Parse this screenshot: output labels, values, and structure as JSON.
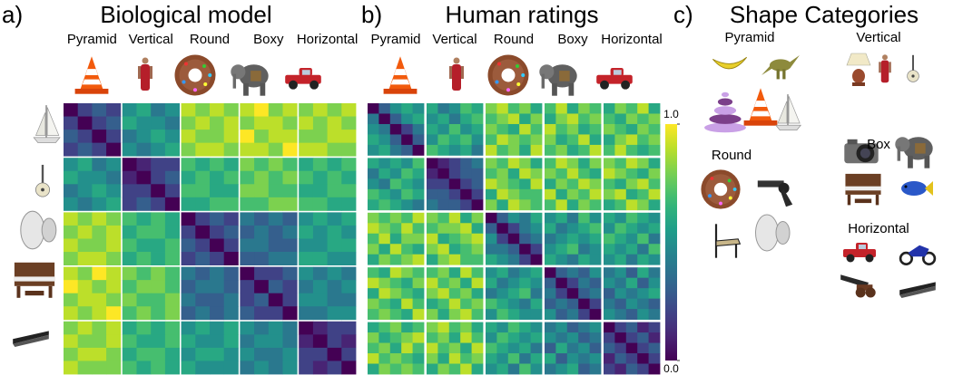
{
  "chart_data": [
    {
      "type": "heatmap",
      "label": "a)",
      "title": "Biological model",
      "categories": [
        "Pyramid",
        "Vertical",
        "Round",
        "Boxy",
        "Horizontal"
      ],
      "colormap": "viridis",
      "block_gaps": true,
      "values": [
        [
          0.0,
          0.2,
          0.3,
          0.2,
          0.5,
          0.6,
          0.4,
          0.5,
          0.9,
          0.8,
          0.9,
          0.8,
          0.9,
          1.0,
          0.8,
          0.9,
          0.8,
          0.9,
          0.8,
          0.9
        ],
        [
          0.2,
          0.0,
          0.2,
          0.3,
          0.6,
          0.5,
          0.5,
          0.4,
          0.8,
          0.9,
          0.8,
          0.9,
          0.8,
          0.9,
          0.9,
          0.8,
          0.9,
          0.8,
          0.9,
          0.8
        ],
        [
          0.3,
          0.2,
          0.0,
          0.2,
          0.4,
          0.5,
          0.6,
          0.5,
          0.9,
          0.8,
          0.8,
          0.9,
          1.0,
          0.8,
          0.9,
          0.9,
          0.8,
          0.8,
          0.9,
          0.9
        ],
        [
          0.2,
          0.3,
          0.2,
          0.0,
          0.5,
          0.4,
          0.5,
          0.6,
          0.8,
          0.9,
          0.9,
          0.8,
          0.9,
          0.9,
          0.8,
          1.0,
          0.9,
          0.9,
          0.8,
          0.8
        ],
        [
          0.5,
          0.6,
          0.4,
          0.5,
          0.0,
          0.1,
          0.2,
          0.2,
          0.7,
          0.6,
          0.7,
          0.6,
          0.8,
          0.7,
          0.8,
          0.7,
          0.6,
          0.7,
          0.6,
          0.7
        ],
        [
          0.6,
          0.5,
          0.5,
          0.4,
          0.1,
          0.0,
          0.2,
          0.3,
          0.6,
          0.7,
          0.6,
          0.7,
          0.7,
          0.8,
          0.7,
          0.8,
          0.7,
          0.6,
          0.7,
          0.6
        ],
        [
          0.4,
          0.5,
          0.6,
          0.5,
          0.2,
          0.2,
          0.0,
          0.2,
          0.7,
          0.7,
          0.6,
          0.6,
          0.8,
          0.8,
          0.7,
          0.7,
          0.6,
          0.6,
          0.7,
          0.7
        ],
        [
          0.5,
          0.4,
          0.5,
          0.6,
          0.2,
          0.3,
          0.2,
          0.0,
          0.6,
          0.6,
          0.7,
          0.7,
          0.7,
          0.7,
          0.8,
          0.8,
          0.7,
          0.7,
          0.6,
          0.6
        ],
        [
          0.9,
          0.8,
          0.9,
          0.8,
          0.7,
          0.6,
          0.7,
          0.6,
          0.0,
          0.2,
          0.3,
          0.2,
          0.4,
          0.3,
          0.4,
          0.3,
          0.5,
          0.6,
          0.5,
          0.6
        ],
        [
          0.8,
          0.9,
          0.8,
          0.9,
          0.6,
          0.7,
          0.7,
          0.6,
          0.2,
          0.0,
          0.2,
          0.3,
          0.3,
          0.4,
          0.3,
          0.4,
          0.6,
          0.5,
          0.6,
          0.5
        ],
        [
          0.9,
          0.8,
          0.8,
          0.9,
          0.7,
          0.6,
          0.6,
          0.7,
          0.3,
          0.2,
          0.0,
          0.2,
          0.4,
          0.4,
          0.3,
          0.3,
          0.5,
          0.5,
          0.6,
          0.6
        ],
        [
          0.8,
          0.9,
          0.9,
          0.8,
          0.6,
          0.7,
          0.6,
          0.7,
          0.2,
          0.3,
          0.2,
          0.0,
          0.3,
          0.3,
          0.4,
          0.4,
          0.6,
          0.6,
          0.5,
          0.5
        ],
        [
          0.9,
          0.8,
          1.0,
          0.9,
          0.8,
          0.7,
          0.8,
          0.7,
          0.4,
          0.3,
          0.4,
          0.3,
          0.0,
          0.2,
          0.2,
          0.3,
          0.5,
          0.4,
          0.5,
          0.4
        ],
        [
          1.0,
          0.9,
          0.8,
          0.9,
          0.7,
          0.8,
          0.8,
          0.7,
          0.3,
          0.4,
          0.4,
          0.3,
          0.2,
          0.0,
          0.3,
          0.2,
          0.4,
          0.5,
          0.4,
          0.5
        ],
        [
          0.8,
          0.9,
          0.9,
          0.8,
          0.8,
          0.7,
          0.7,
          0.8,
          0.4,
          0.3,
          0.3,
          0.4,
          0.2,
          0.3,
          0.0,
          0.2,
          0.5,
          0.5,
          0.4,
          0.4
        ],
        [
          0.9,
          0.8,
          0.9,
          1.0,
          0.7,
          0.8,
          0.7,
          0.8,
          0.3,
          0.4,
          0.3,
          0.4,
          0.3,
          0.2,
          0.2,
          0.0,
          0.4,
          0.4,
          0.5,
          0.5
        ],
        [
          0.8,
          0.9,
          0.8,
          0.9,
          0.6,
          0.7,
          0.6,
          0.7,
          0.5,
          0.6,
          0.5,
          0.6,
          0.5,
          0.4,
          0.5,
          0.4,
          0.0,
          0.1,
          0.2,
          0.2
        ],
        [
          0.9,
          0.8,
          0.8,
          0.9,
          0.7,
          0.6,
          0.6,
          0.7,
          0.6,
          0.5,
          0.5,
          0.6,
          0.4,
          0.5,
          0.5,
          0.4,
          0.1,
          0.0,
          0.2,
          0.1
        ],
        [
          0.8,
          0.9,
          0.9,
          0.8,
          0.6,
          0.7,
          0.7,
          0.6,
          0.5,
          0.6,
          0.6,
          0.5,
          0.5,
          0.4,
          0.4,
          0.5,
          0.2,
          0.2,
          0.0,
          0.2
        ],
        [
          0.9,
          0.8,
          0.8,
          0.8,
          0.7,
          0.6,
          0.7,
          0.6,
          0.6,
          0.5,
          0.5,
          0.5,
          0.4,
          0.5,
          0.4,
          0.5,
          0.2,
          0.1,
          0.2,
          0.0
        ]
      ]
    },
    {
      "type": "heatmap",
      "label": "b)",
      "title": "Human ratings",
      "categories": [
        "Pyramid",
        "Vertical",
        "Round",
        "Boxy",
        "Horizontal"
      ],
      "colormap": "viridis",
      "block_gaps": true,
      "zlim": [
        0,
        1
      ],
      "zticks": [
        {
          "value": 0,
          "label": "0.0"
        },
        {
          "value": 1,
          "label": "1.0"
        }
      ],
      "values": [
        [
          0.0,
          0.3,
          0.5,
          0.6,
          0.5,
          0.6,
          0.4,
          0.5,
          0.7,
          0.6,
          0.8,
          0.9,
          0.7,
          0.8,
          0.6,
          0.7,
          0.9,
          0.6,
          0.8,
          0.7,
          0.6,
          0.8,
          0.7,
          0.9,
          0.6
        ],
        [
          0.4,
          0.0,
          0.3,
          0.5,
          0.6,
          0.5,
          0.6,
          0.4,
          0.6,
          0.7,
          0.7,
          0.8,
          0.9,
          0.6,
          0.8,
          0.6,
          0.8,
          0.9,
          0.7,
          0.8,
          0.7,
          0.6,
          0.8,
          0.7,
          0.8
        ],
        [
          0.5,
          0.4,
          0.0,
          0.2,
          0.4,
          0.6,
          0.5,
          0.7,
          0.5,
          0.6,
          0.8,
          0.7,
          0.6,
          0.9,
          0.7,
          0.9,
          0.7,
          0.8,
          0.6,
          0.7,
          0.8,
          0.7,
          0.6,
          0.8,
          0.7
        ],
        [
          0.6,
          0.5,
          0.3,
          0.0,
          0.3,
          0.5,
          0.7,
          0.6,
          0.7,
          0.5,
          0.7,
          0.9,
          0.8,
          0.7,
          0.8,
          0.8,
          0.6,
          0.7,
          0.9,
          0.6,
          0.6,
          0.8,
          0.9,
          0.7,
          0.8
        ],
        [
          0.5,
          0.6,
          0.4,
          0.3,
          0.0,
          0.7,
          0.6,
          0.5,
          0.6,
          0.4,
          0.9,
          0.7,
          0.8,
          0.6,
          0.9,
          0.7,
          0.8,
          0.6,
          0.7,
          0.9,
          0.7,
          0.9,
          0.7,
          0.6,
          0.7
        ],
        [
          0.6,
          0.5,
          0.6,
          0.5,
          0.7,
          0.0,
          0.1,
          0.2,
          0.3,
          0.4,
          0.8,
          0.7,
          0.9,
          0.8,
          0.6,
          0.7,
          0.9,
          0.8,
          0.6,
          0.8,
          0.8,
          0.7,
          0.9,
          0.8,
          0.6
        ],
        [
          0.4,
          0.6,
          0.5,
          0.7,
          0.6,
          0.1,
          0.0,
          0.2,
          0.3,
          0.3,
          0.7,
          0.8,
          0.6,
          0.9,
          0.8,
          0.8,
          0.7,
          0.9,
          0.7,
          0.6,
          0.9,
          0.8,
          0.7,
          0.6,
          0.8
        ],
        [
          0.5,
          0.4,
          0.7,
          0.6,
          0.5,
          0.2,
          0.2,
          0.0,
          0.2,
          0.3,
          0.9,
          0.8,
          0.7,
          0.6,
          0.9,
          0.6,
          0.8,
          0.7,
          0.9,
          0.8,
          0.7,
          0.6,
          0.8,
          0.9,
          0.7
        ],
        [
          0.7,
          0.6,
          0.5,
          0.7,
          0.6,
          0.3,
          0.3,
          0.2,
          0.0,
          0.2,
          0.6,
          0.9,
          0.8,
          0.7,
          0.7,
          0.9,
          0.6,
          0.8,
          0.7,
          0.9,
          0.8,
          0.9,
          0.6,
          0.7,
          0.9
        ],
        [
          0.6,
          0.7,
          0.6,
          0.5,
          0.4,
          0.4,
          0.3,
          0.3,
          0.2,
          0.0,
          0.8,
          0.6,
          0.9,
          0.8,
          0.7,
          0.7,
          0.9,
          0.6,
          0.8,
          0.7,
          0.6,
          0.7,
          0.9,
          0.8,
          0.6
        ],
        [
          0.8,
          0.7,
          0.8,
          0.7,
          0.9,
          0.8,
          0.7,
          0.9,
          0.6,
          0.8,
          0.0,
          0.3,
          0.5,
          0.4,
          0.6,
          0.5,
          0.6,
          0.4,
          0.7,
          0.5,
          0.6,
          0.5,
          0.7,
          0.6,
          0.5
        ],
        [
          0.9,
          0.8,
          0.7,
          0.9,
          0.7,
          0.7,
          0.8,
          0.8,
          0.9,
          0.6,
          0.3,
          0.0,
          0.2,
          0.4,
          0.5,
          0.6,
          0.4,
          0.5,
          0.6,
          0.7,
          0.5,
          0.7,
          0.6,
          0.5,
          0.6
        ],
        [
          0.7,
          0.9,
          0.6,
          0.8,
          0.8,
          0.9,
          0.6,
          0.7,
          0.8,
          0.9,
          0.5,
          0.2,
          0.0,
          0.3,
          0.4,
          0.4,
          0.5,
          0.6,
          0.5,
          0.6,
          0.7,
          0.6,
          0.5,
          0.7,
          0.4
        ],
        [
          0.8,
          0.6,
          0.9,
          0.7,
          0.6,
          0.8,
          0.9,
          0.6,
          0.7,
          0.8,
          0.4,
          0.4,
          0.3,
          0.0,
          0.2,
          0.5,
          0.6,
          0.7,
          0.4,
          0.5,
          0.6,
          0.5,
          0.6,
          0.4,
          0.7
        ],
        [
          0.6,
          0.8,
          0.7,
          0.8,
          0.9,
          0.6,
          0.8,
          0.9,
          0.7,
          0.7,
          0.6,
          0.5,
          0.4,
          0.2,
          0.0,
          0.6,
          0.5,
          0.4,
          0.6,
          0.5,
          0.5,
          0.6,
          0.4,
          0.6,
          0.5
        ],
        [
          0.7,
          0.6,
          0.9,
          0.8,
          0.7,
          0.7,
          0.8,
          0.6,
          0.9,
          0.7,
          0.5,
          0.6,
          0.4,
          0.5,
          0.6,
          0.0,
          0.3,
          0.4,
          0.3,
          0.5,
          0.4,
          0.5,
          0.3,
          0.6,
          0.4
        ],
        [
          0.9,
          0.8,
          0.7,
          0.6,
          0.8,
          0.9,
          0.7,
          0.8,
          0.6,
          0.9,
          0.6,
          0.4,
          0.5,
          0.6,
          0.5,
          0.3,
          0.0,
          0.2,
          0.4,
          0.3,
          0.5,
          0.4,
          0.6,
          0.3,
          0.5
        ],
        [
          0.6,
          0.9,
          0.8,
          0.7,
          0.6,
          0.8,
          0.9,
          0.7,
          0.8,
          0.6,
          0.4,
          0.5,
          0.6,
          0.7,
          0.4,
          0.4,
          0.2,
          0.0,
          0.3,
          0.4,
          0.3,
          0.5,
          0.4,
          0.5,
          0.6
        ],
        [
          0.8,
          0.7,
          0.6,
          0.9,
          0.7,
          0.6,
          0.7,
          0.9,
          0.7,
          0.8,
          0.7,
          0.6,
          0.5,
          0.4,
          0.6,
          0.3,
          0.4,
          0.3,
          0.0,
          0.2,
          0.4,
          0.3,
          0.5,
          0.4,
          0.3
        ],
        [
          0.7,
          0.8,
          0.7,
          0.6,
          0.9,
          0.8,
          0.6,
          0.8,
          0.9,
          0.7,
          0.5,
          0.7,
          0.6,
          0.5,
          0.5,
          0.5,
          0.3,
          0.4,
          0.2,
          0.0,
          0.5,
          0.4,
          0.3,
          0.5,
          0.4
        ],
        [
          0.6,
          0.7,
          0.8,
          0.6,
          0.7,
          0.8,
          0.9,
          0.7,
          0.8,
          0.6,
          0.6,
          0.5,
          0.7,
          0.6,
          0.5,
          0.4,
          0.5,
          0.3,
          0.4,
          0.5,
          0.0,
          0.2,
          0.3,
          0.1,
          0.2
        ],
        [
          0.8,
          0.6,
          0.7,
          0.8,
          0.9,
          0.7,
          0.8,
          0.6,
          0.9,
          0.7,
          0.5,
          0.7,
          0.6,
          0.5,
          0.6,
          0.5,
          0.4,
          0.5,
          0.3,
          0.4,
          0.2,
          0.0,
          0.2,
          0.3,
          0.1
        ],
        [
          0.7,
          0.8,
          0.6,
          0.9,
          0.7,
          0.9,
          0.7,
          0.8,
          0.6,
          0.9,
          0.7,
          0.6,
          0.5,
          0.6,
          0.4,
          0.3,
          0.6,
          0.4,
          0.5,
          0.3,
          0.3,
          0.2,
          0.0,
          0.2,
          0.3
        ],
        [
          0.9,
          0.7,
          0.8,
          0.7,
          0.6,
          0.8,
          0.6,
          0.9,
          0.7,
          0.8,
          0.6,
          0.5,
          0.7,
          0.4,
          0.6,
          0.6,
          0.3,
          0.5,
          0.4,
          0.5,
          0.1,
          0.3,
          0.2,
          0.0,
          0.2
        ],
        [
          0.6,
          0.8,
          0.7,
          0.8,
          0.7,
          0.6,
          0.8,
          0.7,
          0.9,
          0.6,
          0.5,
          0.6,
          0.4,
          0.7,
          0.5,
          0.4,
          0.5,
          0.6,
          0.3,
          0.4,
          0.2,
          0.1,
          0.3,
          0.2,
          0.0
        ]
      ]
    }
  ],
  "shape_categories": {
    "label": "c)",
    "title": "Shape Categories",
    "groups": [
      "Pyramid",
      "Vertical",
      "Round",
      "Box",
      "Horizontal"
    ]
  }
}
